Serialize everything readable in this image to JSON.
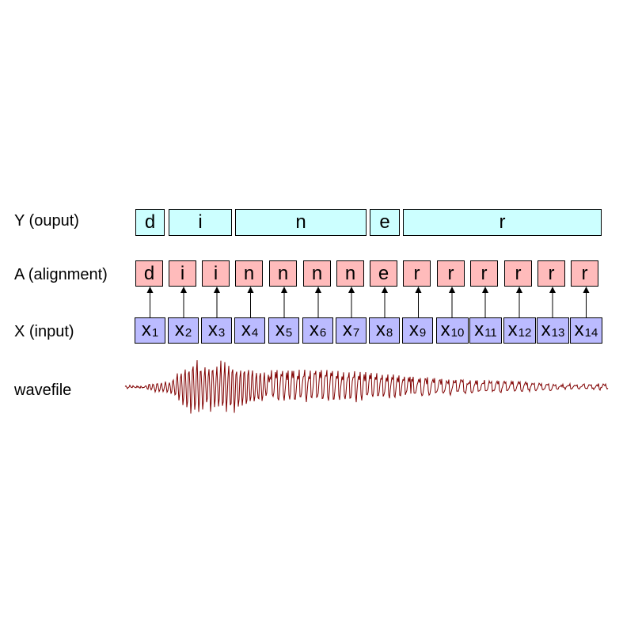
{
  "labels": {
    "y": "Y (ouput)",
    "a": "A (alignment)",
    "x": "X (input)",
    "wave": "wavefile"
  },
  "y_segments": [
    {
      "text": "d",
      "span": 1
    },
    {
      "text": "i",
      "span": 2
    },
    {
      "text": "n",
      "span": 4
    },
    {
      "text": "e",
      "span": 1
    },
    {
      "text": "r",
      "span": 6
    }
  ],
  "alignment": [
    "d",
    "i",
    "i",
    "n",
    "n",
    "n",
    "n",
    "e",
    "r",
    "r",
    "r",
    "r",
    "r",
    "r"
  ],
  "inputs": [
    {
      "base": "x",
      "sub": "1"
    },
    {
      "base": "x",
      "sub": "2"
    },
    {
      "base": "x",
      "sub": "3"
    },
    {
      "base": "x",
      "sub": "4"
    },
    {
      "base": "x",
      "sub": "5"
    },
    {
      "base": "x",
      "sub": "6"
    },
    {
      "base": "x",
      "sub": "7"
    },
    {
      "base": "x",
      "sub": "8"
    },
    {
      "base": "x",
      "sub": "9"
    },
    {
      "base": "x",
      "sub": "10"
    },
    {
      "base": "x",
      "sub": "11"
    },
    {
      "base": "x",
      "sub": "12"
    },
    {
      "base": "x",
      "sub": "13"
    },
    {
      "base": "x",
      "sub": "14"
    }
  ],
  "colors": {
    "y_fill": "#ccffff",
    "a_fill": "#ffbbbb",
    "x_fill": "#bbbbff",
    "wave_stroke": "#800000"
  }
}
